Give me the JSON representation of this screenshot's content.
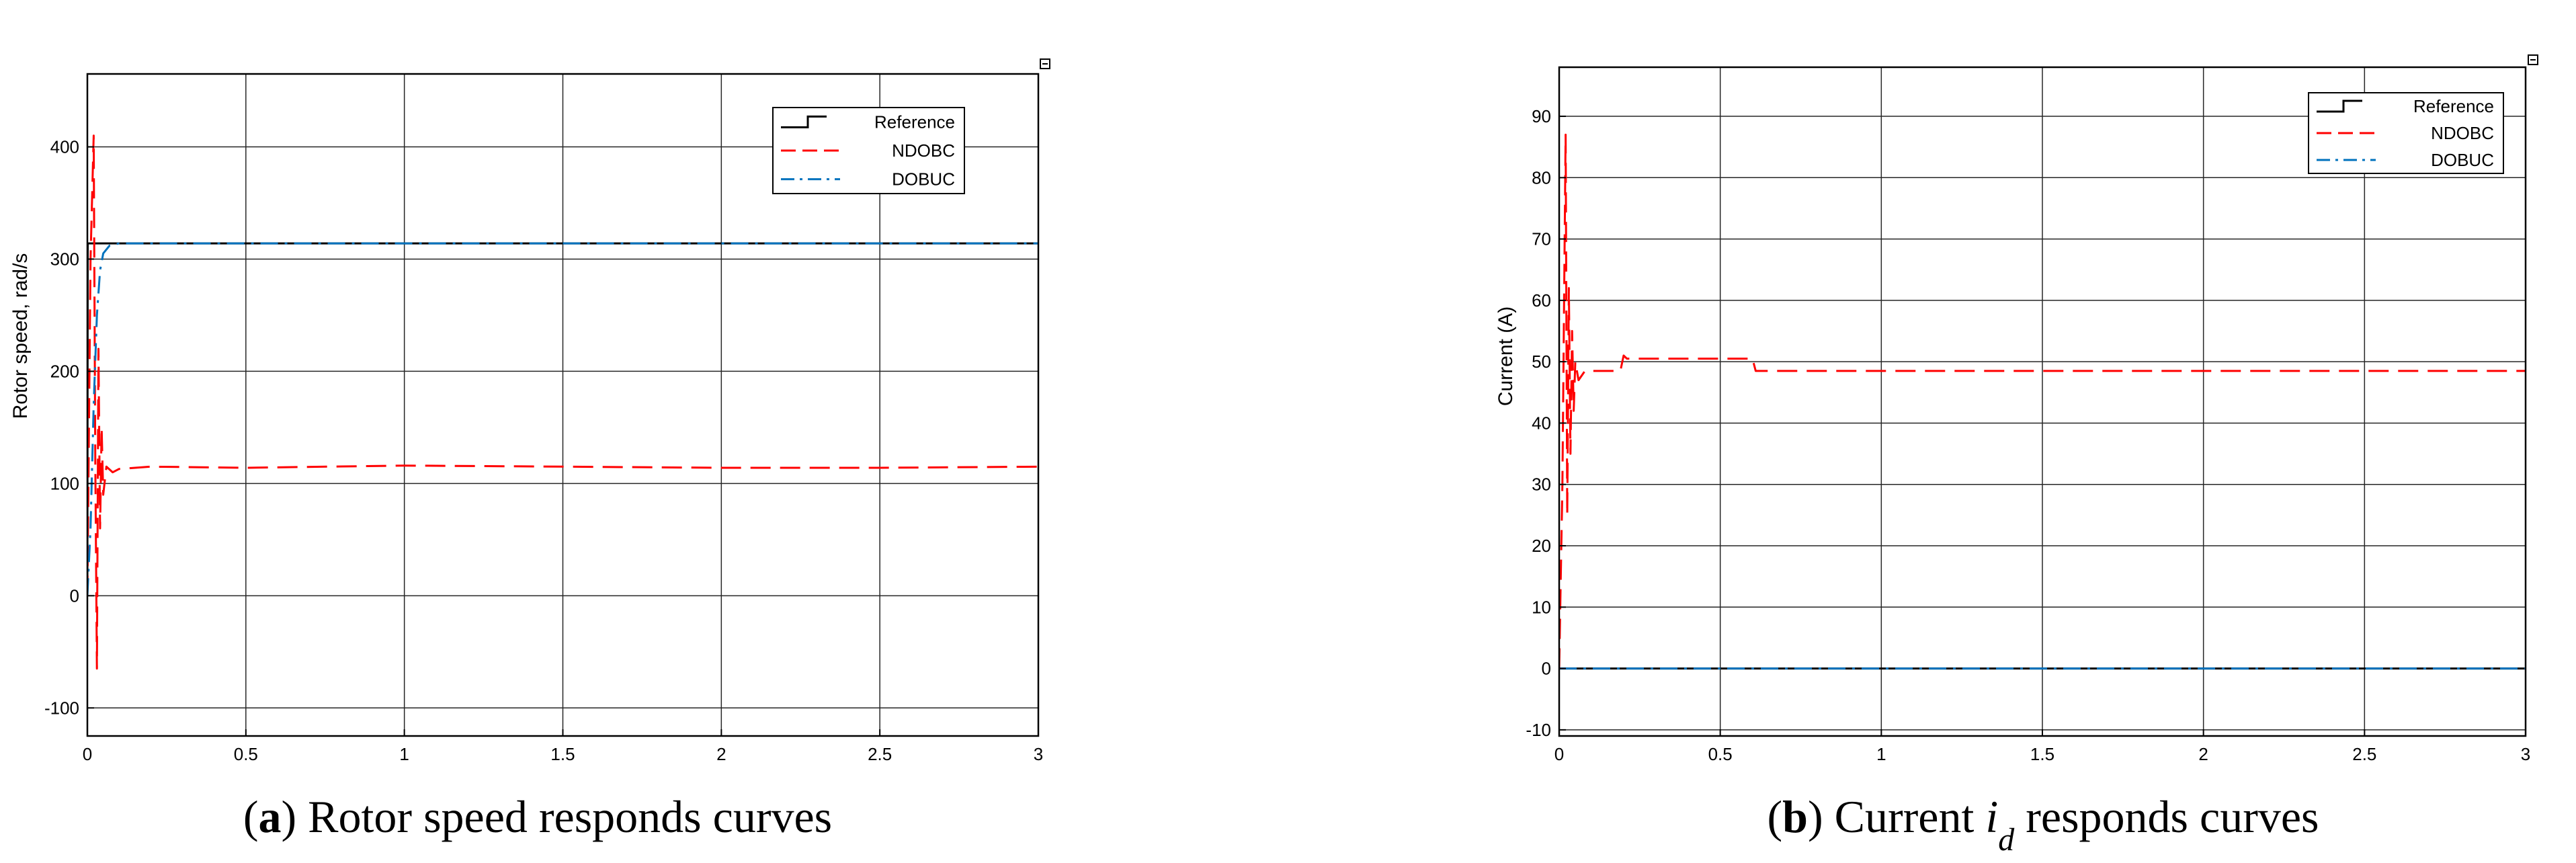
{
  "chart_data": [
    {
      "type": "line",
      "panel_label": "a",
      "caption": "Rotor speed responds curves",
      "title": "",
      "xlabel": "",
      "ylabel": "Rotor speed, rad/s",
      "xlim": [
        0,
        3
      ],
      "ylim": [
        -125,
        465
      ],
      "x_ticks": [
        0,
        0.5,
        1,
        1.5,
        2,
        2.5,
        3
      ],
      "x_tick_labels": [
        "0",
        "0.5",
        "1",
        "1.5",
        "2",
        "2.5",
        "3"
      ],
      "y_ticks": [
        -100,
        0,
        100,
        200,
        300,
        400
      ],
      "y_tick_labels": [
        "-100",
        "0",
        "100",
        "200",
        "300",
        "400"
      ],
      "grid": true,
      "legend_position": "top-right",
      "series": [
        {
          "name": "Reference",
          "color": "#000000",
          "style": "solid",
          "x": [
            0,
            0.001,
            3
          ],
          "y": [
            0,
            314,
            314
          ]
        },
        {
          "name": "NDOBC",
          "color": "#ff0000",
          "style": "dashed",
          "x": [
            0,
            0.01,
            0.02,
            0.025,
            0.03,
            0.035,
            0.04,
            0.045,
            0.05,
            0.06,
            0.08,
            0.1,
            0.2,
            0.5,
            1,
            1.5,
            2,
            2.5,
            3
          ],
          "y": [
            0,
            300,
            410,
            120,
            -65,
            220,
            60,
            150,
            90,
            115,
            110,
            113,
            115,
            114,
            116,
            115,
            114,
            114,
            115
          ]
        },
        {
          "name": "DOBUC",
          "color": "#0072bd",
          "style": "dash-dot",
          "x": [
            0,
            0.01,
            0.02,
            0.03,
            0.04,
            0.05,
            0.07,
            0.1,
            3
          ],
          "y": [
            0,
            60,
            170,
            250,
            290,
            305,
            312,
            314,
            314
          ]
        }
      ]
    },
    {
      "type": "line",
      "panel_label": "b",
      "caption_prefix": "Current",
      "caption_symbol": "i",
      "caption_subscript": "d",
      "caption_suffix": "responds curves",
      "title": "",
      "xlabel": "",
      "ylabel": "Current (A)",
      "xlim": [
        0,
        3
      ],
      "ylim": [
        -11,
        98
      ],
      "x_ticks": [
        0,
        0.5,
        1,
        1.5,
        2,
        2.5,
        3
      ],
      "x_tick_labels": [
        "0",
        "0.5",
        "1",
        "1.5",
        "2",
        "2.5",
        "3"
      ],
      "y_ticks": [
        -10,
        0,
        10,
        20,
        30,
        40,
        50,
        60,
        70,
        80,
        90
      ],
      "y_tick_labels": [
        "-10",
        "0",
        "10",
        "20",
        "30",
        "40",
        "50",
        "60",
        "70",
        "80",
        "90"
      ],
      "grid": true,
      "legend_position": "top-right",
      "series": [
        {
          "name": "Reference",
          "color": "#000000",
          "style": "solid",
          "x": [
            0,
            3
          ],
          "y": [
            0,
            0
          ]
        },
        {
          "name": "NDOBC",
          "color": "#ff0000",
          "style": "dashed",
          "x": [
            0,
            0.01,
            0.02,
            0.025,
            0.03,
            0.035,
            0.04,
            0.045,
            0.05,
            0.06,
            0.08,
            0.1,
            0.19,
            0.2,
            0.21,
            0.6,
            0.61,
            1,
            1.5,
            2,
            2.5,
            3
          ],
          "y": [
            0,
            30,
            87,
            25,
            62,
            35,
            55,
            42,
            50,
            47,
            48.5,
            48.5,
            48.5,
            51,
            50.5,
            50.5,
            48.5,
            48.5,
            48.5,
            48.5,
            48.5,
            48.5
          ]
        },
        {
          "name": "DOBUC",
          "color": "#0072bd",
          "style": "dash-dot",
          "x": [
            0,
            3
          ],
          "y": [
            0,
            0
          ]
        }
      ]
    }
  ]
}
